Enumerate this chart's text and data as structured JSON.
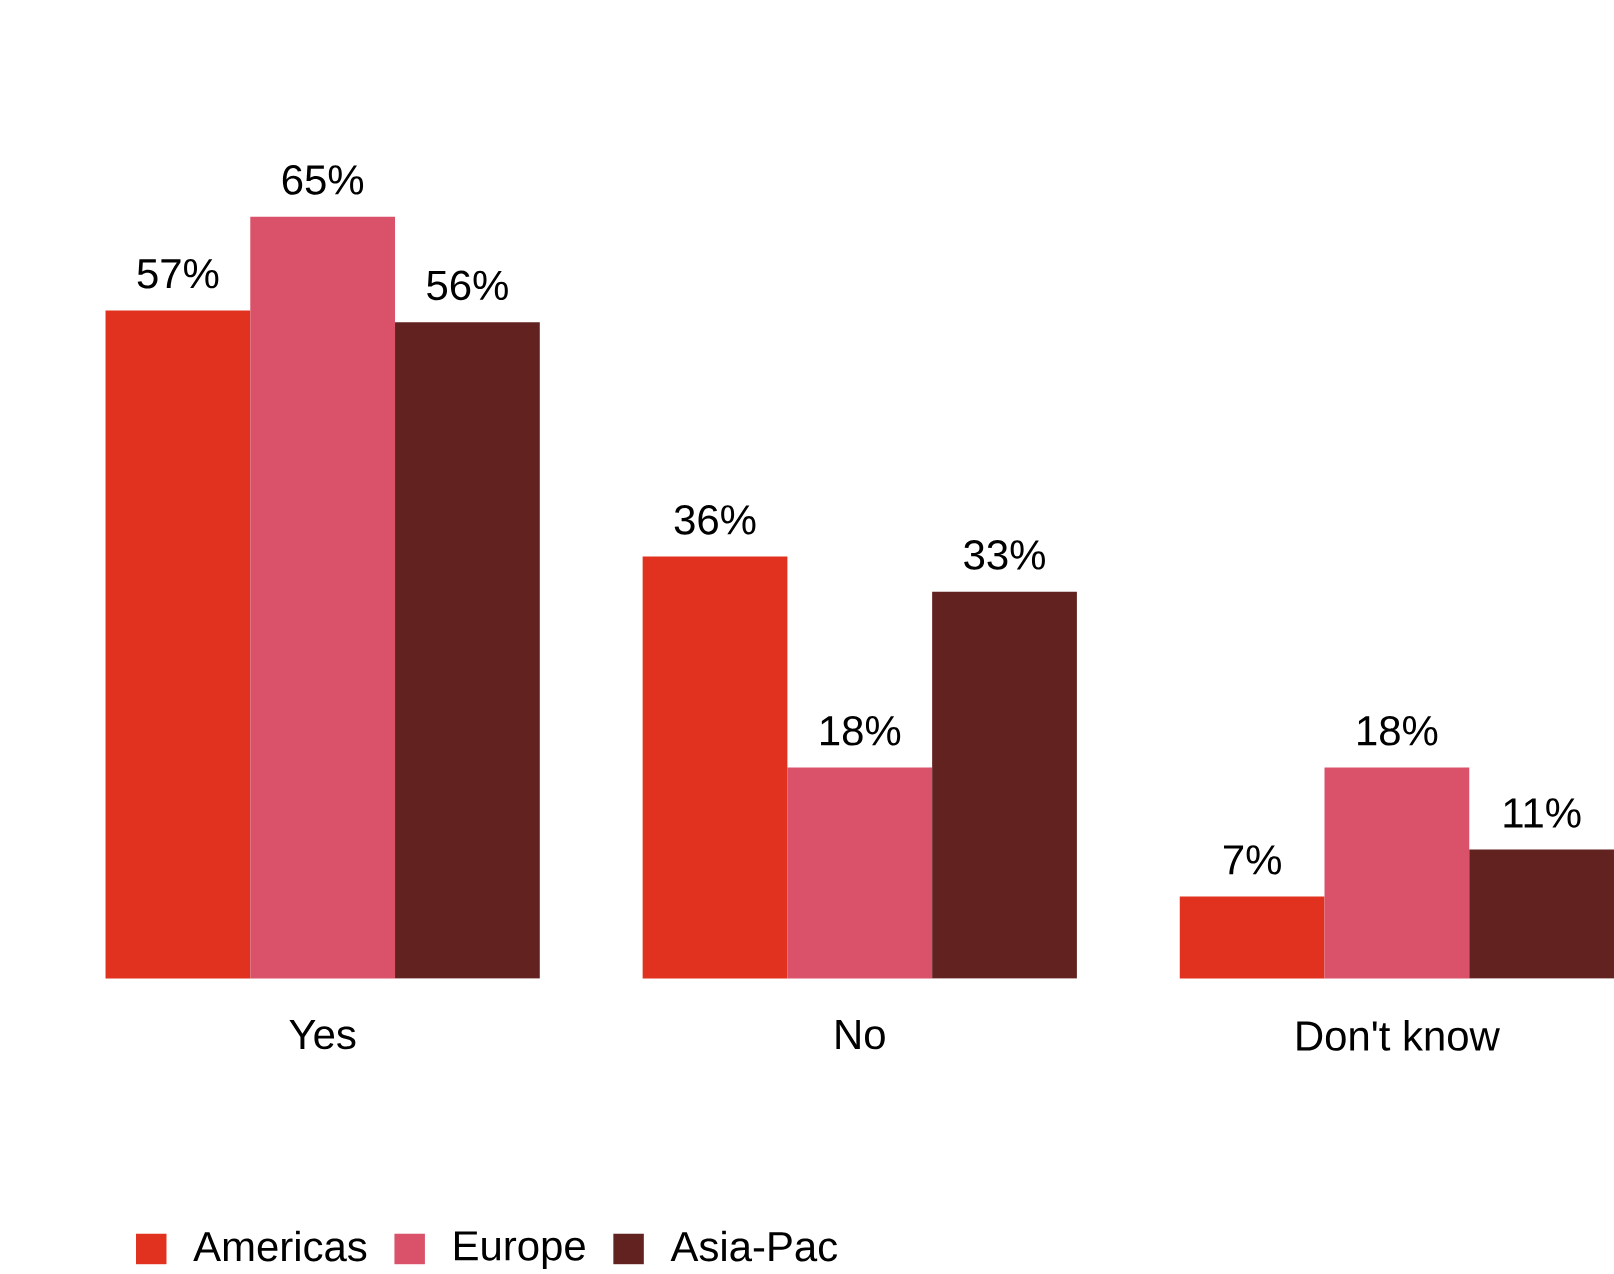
{
  "chart_data": {
    "type": "bar",
    "categories": [
      "Yes",
      "No",
      "Don't know"
    ],
    "series": [
      {
        "name": "Americas",
        "color": "#e0321e",
        "values": [
          57,
          36,
          7
        ],
        "value_labels": [
          "57%",
          "36%",
          "7%"
        ]
      },
      {
        "name": "Europe",
        "color": "#d9526a",
        "values": [
          65,
          18,
          18
        ],
        "value_labels": [
          "65%",
          "18%",
          "18%"
        ]
      },
      {
        "name": "Asia-Pac",
        "color": "#622220",
        "values": [
          56,
          33,
          11
        ],
        "value_labels": [
          "56%",
          "33%",
          "11%"
        ]
      }
    ],
    "legend": "bottom"
  }
}
